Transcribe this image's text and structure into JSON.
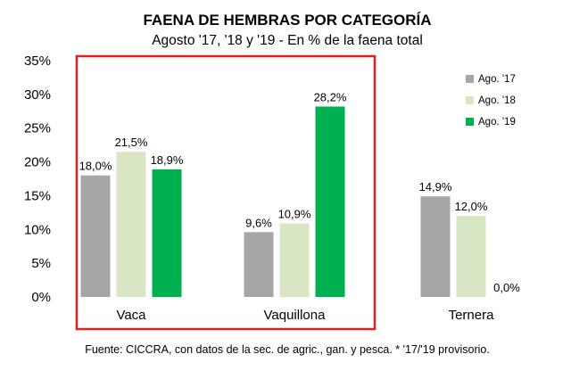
{
  "chart_data": {
    "type": "bar",
    "title": "FAENA DE HEMBRAS POR CATEGORÍA",
    "subtitle": "Agosto '17, '18 y '19 - En % de la faena total",
    "categories": [
      "Vaca",
      "Vaquillona",
      "Ternera"
    ],
    "series": [
      {
        "name": "Ago. '17",
        "color": "#a6a6a6",
        "values": [
          18.0,
          9.6,
          14.9
        ],
        "labels": [
          "18,0%",
          "9,6%",
          "14,9%"
        ]
      },
      {
        "name": "Ago. '18",
        "color": "#d9e6c3",
        "values": [
          21.5,
          10.9,
          12.0
        ],
        "labels": [
          "21,5%",
          "10,9%",
          "12,0%"
        ]
      },
      {
        "name": "Ago. '19",
        "color": "#00b050",
        "values": [
          18.9,
          28.2,
          0.0
        ],
        "labels": [
          "18,9%",
          "28,2%",
          "0,0%"
        ]
      }
    ],
    "ylim": [
      0,
      35
    ],
    "yticks": [
      0,
      5,
      10,
      15,
      20,
      25,
      30,
      35
    ],
    "ytick_labels": [
      "0%",
      "5%",
      "10%",
      "15%",
      "20%",
      "25%",
      "30%",
      "35%"
    ],
    "grid": false,
    "legend_position": "top-right",
    "highlight_color": "#e02020",
    "source": "Fuente: CICCRA, con datos de la sec. de agric., gan. y pesca. * '17/'19 provisorio."
  }
}
